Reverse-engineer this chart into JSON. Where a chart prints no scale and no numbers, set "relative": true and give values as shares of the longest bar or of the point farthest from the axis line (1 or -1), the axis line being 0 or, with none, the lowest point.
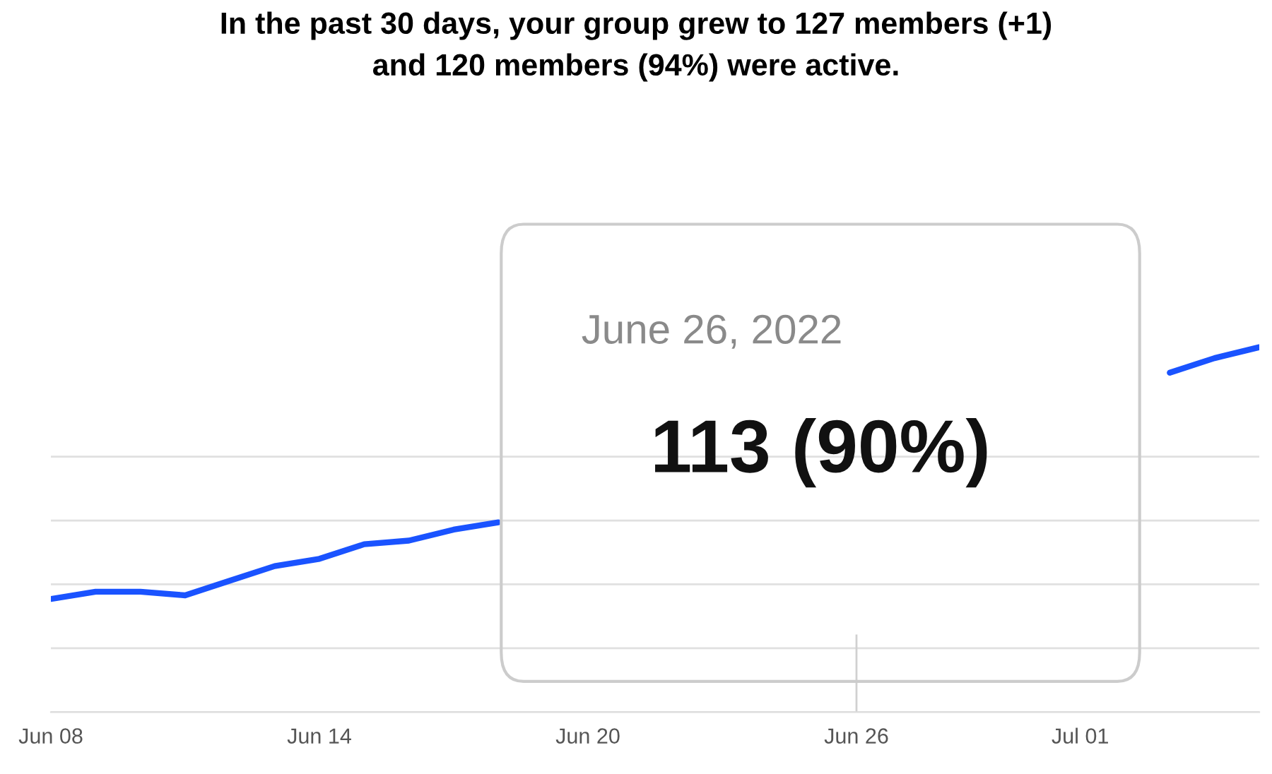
{
  "chart_data": {
    "type": "line",
    "title": "In the past 30 days, your group grew to 127 members (+1)\nand 120 members (94%) were active.",
    "relative": true,
    "x": [
      "2022-06-08",
      "2022-06-09",
      "2022-06-10",
      "2022-06-11",
      "2022-06-12",
      "2022-06-13",
      "2022-06-14",
      "2022-06-15",
      "2022-06-16",
      "2022-06-17",
      "2022-06-18",
      "2022-06-19",
      "2022-06-20",
      "2022-06-21",
      "2022-06-22",
      "2022-06-23",
      "2022-06-24",
      "2022-06-25",
      "2022-06-26",
      "2022-06-27",
      "2022-06-28",
      "2022-06-29",
      "2022-06-30",
      "2022-07-01",
      "2022-07-02",
      "2022-07-03",
      "2022-07-04",
      "2022-07-05"
    ],
    "series": [
      {
        "color": "#1a53ff",
        "values": [
          0.31,
          0.33,
          0.33,
          0.32,
          0.36,
          0.4,
          0.42,
          0.46,
          0.47,
          0.5,
          0.52,
          null,
          null,
          null,
          null,
          null,
          null,
          null,
          null,
          null,
          null,
          null,
          null,
          null,
          null,
          0.93,
          0.97,
          1.0
        ]
      }
    ],
    "xlim": [
      "2022-06-08",
      "2022-07-05"
    ],
    "xticks": [
      {
        "value": "2022-06-08",
        "label": "Jun 08"
      },
      {
        "value": "2022-06-14",
        "label": "Jun 14"
      },
      {
        "value": "2022-06-20",
        "label": "Jun 20"
      },
      {
        "value": "2022-06-26",
        "label": "Jun 26"
      },
      {
        "value": "2022-07-01",
        "label": "Jul 01"
      }
    ],
    "ref_lines": [
      {
        "axis": "x",
        "value": "2022-06-26",
        "color": "#d0d0d0"
      }
    ],
    "annotations": [
      "June 26, 2022",
      "113 (90%)"
    ],
    "grid": "y",
    "legend": false,
    "marker": "none",
    "line_style": "solid"
  }
}
